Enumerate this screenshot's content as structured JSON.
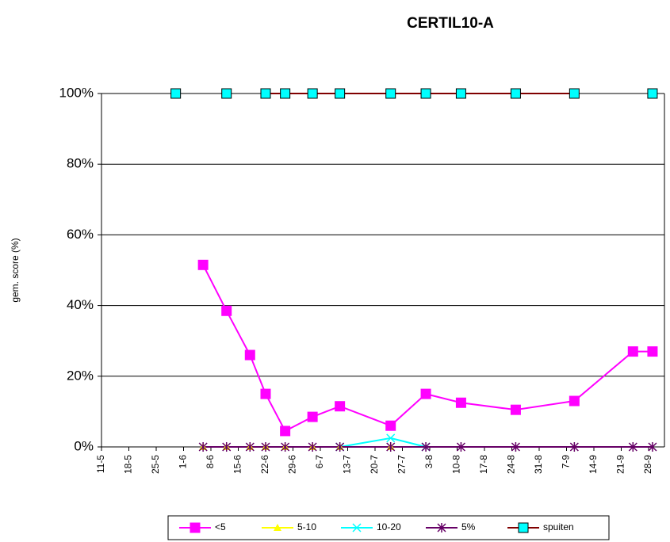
{
  "chart_data": {
    "type": "line",
    "title": "CERTIL10-A",
    "y_label": "gem. score (%)",
    "x": [
      "30-5",
      "6-6",
      "12-6",
      "18-6",
      "22-6",
      "27-6",
      "4-7",
      "11-7",
      "24-7",
      "2-8",
      "11-8",
      "25-8",
      "9-9",
      "24-9",
      "29-9"
    ],
    "series": [
      {
        "name": "<5",
        "color": "#ff00ff",
        "marker": "square",
        "marker_color": "#ff00ff",
        "values": [
          null,
          51.5,
          38.5,
          26,
          15,
          4.5,
          8.5,
          11.5,
          6,
          15,
          12.5,
          10.5,
          13,
          27,
          27
        ]
      },
      {
        "name": "5-10",
        "color": "#ffff00",
        "marker": "triangle",
        "marker_color": "#ffff00",
        "values": [
          null,
          0,
          0,
          0,
          0,
          0,
          0,
          0,
          0,
          null,
          null,
          null,
          null,
          null,
          null
        ]
      },
      {
        "name": "10-20",
        "color": "#00ffff",
        "marker": "x",
        "marker_color": "#00ffff",
        "values": [
          null,
          null,
          null,
          null,
          null,
          null,
          null,
          0,
          2.5,
          0,
          null,
          null,
          null,
          null,
          null
        ]
      },
      {
        "name": "5%",
        "color": "#660066",
        "marker": "star",
        "marker_color": "#660066",
        "values": [
          null,
          0,
          0,
          0,
          0,
          0,
          0,
          0,
          0,
          0,
          0,
          0,
          0,
          0,
          0
        ]
      },
      {
        "name": "spuiten",
        "color": "#800000",
        "marker": "square",
        "marker_color": "#00ffff",
        "values": [
          100,
          null,
          100,
          null,
          100,
          100,
          100,
          100,
          100,
          100,
          100,
          100,
          100,
          null,
          100
        ]
      }
    ],
    "xlim": [
      "11-5",
      "28-9"
    ],
    "xticks": [
      "11-5",
      "18-5",
      "25-5",
      "1-6",
      "8-6",
      "15-6",
      "22-6",
      "29-6",
      "6-7",
      "13-7",
      "20-7",
      "27-7",
      "3-8",
      "10-8",
      "17-8",
      "24-8",
      "31-8",
      "7-9",
      "14-9",
      "21-9",
      "28-9"
    ],
    "ylim": [
      0,
      100
    ],
    "yticks": [
      {
        "value": 0,
        "label": "0%"
      },
      {
        "value": 20,
        "label": "20%"
      },
      {
        "value": 40,
        "label": "40%"
      },
      {
        "value": 60,
        "label": "60%"
      },
      {
        "value": 80,
        "label": "80%"
      },
      {
        "value": 100,
        "label": "100%"
      }
    ],
    "grid": true,
    "legend": "bottom"
  }
}
